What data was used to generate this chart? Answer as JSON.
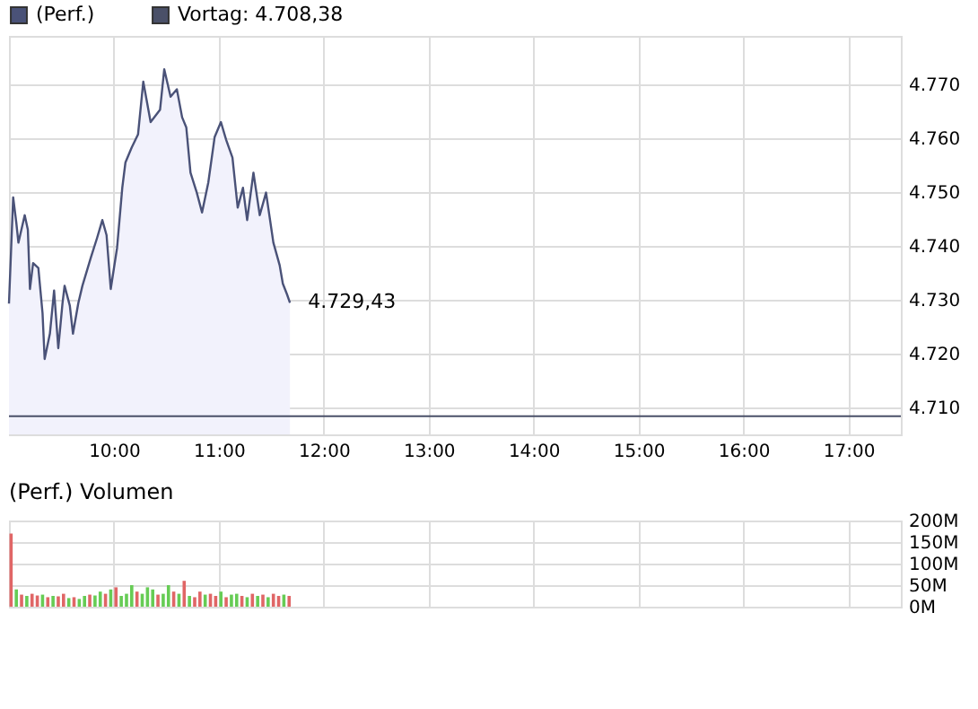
{
  "chart_data": [
    {
      "type": "area",
      "series": [
        {
          "name": "(Perf.)",
          "color": "#4a5278",
          "x": [
            9.0,
            9.04,
            9.07,
            9.09,
            9.15,
            9.18,
            9.2,
            9.23,
            9.28,
            9.32,
            9.34,
            9.39,
            9.43,
            9.47,
            9.51,
            9.53,
            9.58,
            9.61,
            9.66,
            9.7,
            9.78,
            9.84,
            9.89,
            9.93,
            9.97,
            10.03,
            10.08,
            10.11,
            10.17,
            10.23,
            10.28,
            10.35,
            10.44,
            10.48,
            10.54,
            10.6,
            10.65,
            10.69,
            10.73,
            10.79,
            10.84,
            10.9,
            10.96,
            11.02,
            11.07,
            11.13,
            11.18,
            11.23,
            11.27,
            11.33,
            11.39,
            11.45,
            11.52,
            11.58,
            11.61,
            11.65,
            11.678
          ],
          "values": [
            4729.3,
            4749,
            4744.3,
            4740.6,
            4745.7,
            4743,
            4732,
            4736.8,
            4735.9,
            4727.5,
            4719,
            4723.7,
            4731.7,
            4721,
            4729.3,
            4732.6,
            4728.9,
            4723.7,
            4729.3,
            4732.6,
            4737.8,
            4741.5,
            4744.8,
            4742,
            4732,
            4739.6,
            4750.8,
            4755.5,
            4758.3,
            4760.7,
            4770.5,
            4763,
            4765.3,
            4772.8,
            4767.7,
            4769.1,
            4763.9,
            4762,
            4753.6,
            4749.9,
            4746.2,
            4751.8,
            4760.2,
            4763,
            4759.7,
            4756.4,
            4747.1,
            4750.8,
            4744.8,
            4753.6,
            4745.7,
            4749.9,
            4740.6,
            4736.4,
            4733,
            4731,
            4729.43
          ]
        }
      ],
      "xlim": [
        9,
        17.5
      ],
      "ylim": [
        4705,
        4779
      ],
      "xticks": [
        {
          "value": 10,
          "label": "10:00"
        },
        {
          "value": 11,
          "label": "11:00"
        },
        {
          "value": 12,
          "label": "12:00"
        },
        {
          "value": 13,
          "label": "13:00"
        },
        {
          "value": 14,
          "label": "14:00"
        },
        {
          "value": 15,
          "label": "15:00"
        },
        {
          "value": 16,
          "label": "16:00"
        },
        {
          "value": 17,
          "label": "17:00"
        }
      ],
      "yticks": [
        {
          "value": 4710,
          "label": "4.710"
        },
        {
          "value": 4720,
          "label": "4.720"
        },
        {
          "value": 4730,
          "label": "4.730"
        },
        {
          "value": 4740,
          "label": "4.740"
        },
        {
          "value": 4750,
          "label": "4.750"
        },
        {
          "value": 4760,
          "label": "4.760"
        },
        {
          "value": 4770,
          "label": "4.770"
        }
      ],
      "ref_lines": [
        {
          "axis": "y",
          "value": 4708.38,
          "label": "Vortag: 4.708,38",
          "color": "#4a5068"
        }
      ],
      "annotations": [
        {
          "text": "4.729,43",
          "x": 11.678,
          "y": 4729.43
        }
      ],
      "grid": true,
      "legend": "top left"
    },
    {
      "type": "bar",
      "title": "(Perf.) Volumen",
      "x": [
        9.02,
        9.07,
        9.12,
        9.17,
        9.22,
        9.27,
        9.32,
        9.37,
        9.42,
        9.47,
        9.52,
        9.57,
        9.62,
        9.67,
        9.72,
        9.77,
        9.82,
        9.87,
        9.92,
        9.97,
        10.02,
        10.07,
        10.12,
        10.17,
        10.22,
        10.27,
        10.32,
        10.37,
        10.42,
        10.47,
        10.52,
        10.57,
        10.62,
        10.67,
        10.72,
        10.77,
        10.82,
        10.87,
        10.92,
        10.97,
        11.02,
        11.07,
        11.12,
        11.17,
        11.22,
        11.27,
        11.32,
        11.37,
        11.42,
        11.47,
        11.52,
        11.57,
        11.62,
        11.67
      ],
      "values": [
        170,
        40,
        28,
        25,
        30,
        26,
        28,
        22,
        25,
        24,
        30,
        20,
        22,
        18,
        25,
        28,
        26,
        35,
        30,
        40,
        45,
        25,
        30,
        50,
        35,
        30,
        45,
        40,
        28,
        30,
        50,
        35,
        30,
        60,
        25,
        22,
        35,
        28,
        30,
        25,
        35,
        22,
        28,
        30,
        25,
        22,
        30,
        25,
        28,
        22,
        30,
        25,
        28,
        25
      ],
      "colors": [
        "#e06666",
        "#66cc55",
        "#e06666",
        "#66cc55",
        "#e06666",
        "#e06666",
        "#66cc55",
        "#e06666",
        "#66cc55",
        "#e06666",
        "#e06666",
        "#66cc55",
        "#e06666",
        "#66cc55",
        "#66cc55",
        "#e06666",
        "#66cc55",
        "#66cc55",
        "#e06666",
        "#66cc55",
        "#e06666",
        "#66cc55",
        "#66cc55",
        "#66cc55",
        "#e06666",
        "#66cc55",
        "#66cc55",
        "#66cc55",
        "#e06666",
        "#66cc55",
        "#66cc55",
        "#e06666",
        "#66cc55",
        "#e06666",
        "#66cc55",
        "#e06666",
        "#e06666",
        "#66cc55",
        "#e06666",
        "#e06666",
        "#66cc55",
        "#e06666",
        "#66cc55",
        "#66cc55",
        "#e06666",
        "#66cc55",
        "#e06666",
        "#66cc55",
        "#e06666",
        "#66cc55",
        "#e06666",
        "#e06666",
        "#66cc55",
        "#e06666"
      ],
      "xlim": [
        9,
        17.5
      ],
      "ylim": [
        0,
        200
      ],
      "xticks": [
        {
          "value": 10,
          "label": null
        },
        {
          "value": 11,
          "label": null
        },
        {
          "value": 12,
          "label": null
        },
        {
          "value": 13,
          "label": null
        },
        {
          "value": 14,
          "label": null
        },
        {
          "value": 15,
          "label": null
        },
        {
          "value": 16,
          "label": null
        },
        {
          "value": 17,
          "label": null
        }
      ],
      "yticks": [
        {
          "value": 0,
          "label": "0M"
        },
        {
          "value": 50,
          "label": "50M"
        },
        {
          "value": 100,
          "label": "100M"
        },
        {
          "value": 150,
          "label": "150M"
        },
        {
          "value": 200,
          "label": "200M"
        }
      ],
      "tick_labels": "y",
      "grid": true
    }
  ]
}
